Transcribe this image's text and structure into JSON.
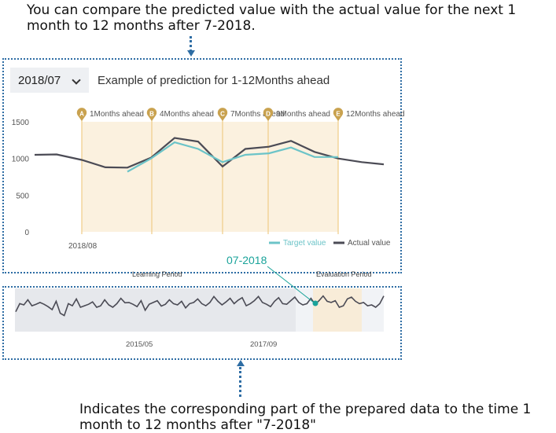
{
  "annotations": {
    "top": "You can compare the predicted value with the actual value for the next 1 month to 12 months after 7-2018.",
    "bottom": "Indicates the corresponding part of the prepared data to the time 1 month to 12 months after \"7-2018\"",
    "pointer_label": "07-2018"
  },
  "selector": {
    "value": "2018/07"
  },
  "chart_heading": "Example of prediction for 1-12Months ahead",
  "colors": {
    "actual": "#4b4b55",
    "target": "#6cc4c8",
    "band": "#fbf1df",
    "marker": "#c9a24f",
    "frame": "#2e6da4",
    "pointer": "#1aa39a"
  },
  "chart_data": {
    "type": "line",
    "ylim": [
      0,
      1500
    ],
    "yticks": [
      "1500",
      "1000",
      "500",
      "0"
    ],
    "xlabel_tick": "2018/08",
    "series": [
      {
        "name": "Actual value",
        "values": [
          1050,
          1055,
          980,
          880,
          875,
          1010,
          1280,
          1230,
          890,
          1130,
          1160,
          1240,
          1090,
          1000,
          950,
          920
        ]
      },
      {
        "name": "Target value",
        "values": [
          null,
          null,
          920,
          null,
          820,
          1000,
          1220,
          1130,
          950,
          1050,
          1070,
          1150,
          1020,
          1020,
          null,
          null
        ]
      }
    ],
    "horizon_markers": [
      {
        "letter": "A",
        "label": "1Months ahead"
      },
      {
        "letter": "B",
        "label": "4Months ahead"
      },
      {
        "letter": "C",
        "label": "7Months ahead"
      },
      {
        "letter": "D",
        "label": "9Months ahead"
      },
      {
        "letter": "E",
        "label": "12Months ahead"
      }
    ]
  },
  "navigator": {
    "learning_label": "Learning Period",
    "evaluation_label": "Evaluation Period",
    "ticks": [
      "2015/05",
      "2017/09"
    ]
  }
}
